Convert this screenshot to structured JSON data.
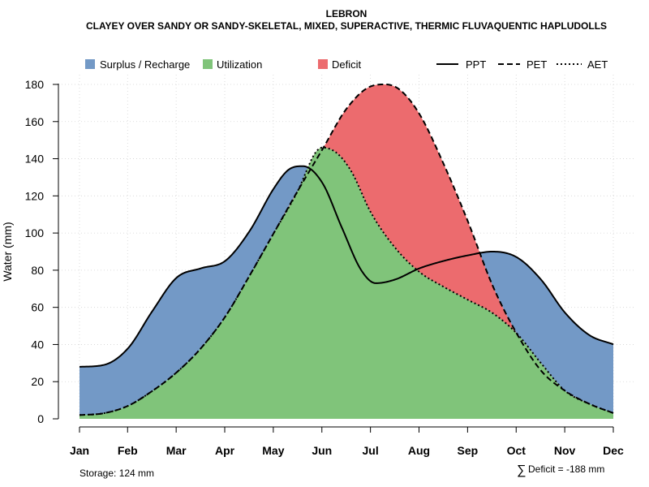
{
  "chart_data": {
    "type": "area",
    "title": "LEBRON",
    "subtitle": "CLAYEY OVER SANDY OR SANDY-SKELETAL, MIXED, SUPERACTIVE, THERMIC FLUVAQUENTIC HAPLUDOLLS",
    "xlabel": "",
    "ylabel": "Water (mm)",
    "ylim": [
      0,
      185
    ],
    "yticks": [
      0,
      20,
      40,
      60,
      80,
      100,
      120,
      140,
      160,
      180
    ],
    "grid": true,
    "legend_position": "top",
    "categories": [
      "Jan",
      "Feb",
      "Mar",
      "Apr",
      "May",
      "Jun",
      "Jul",
      "Aug",
      "Sep",
      "Oct",
      "Nov",
      "Dec"
    ],
    "x": [
      1,
      1.99,
      2.99,
      3.99,
      4.99,
      5.99,
      6.99,
      7.99,
      8.99,
      9.99,
      10.99,
      11.99
    ],
    "series": [
      {
        "name": "PPT",
        "line_style": "solid",
        "x": [
          1,
          1.5,
          2,
          2.5,
          3,
          3.5,
          4,
          4.5,
          5,
          5.3,
          5.6,
          6.0,
          6.4,
          6.8,
          7.1,
          7.5,
          8,
          8.5,
          9,
          9.5,
          10,
          10.5,
          11,
          11.5,
          12
        ],
        "values": [
          28,
          29,
          38,
          58,
          76,
          81,
          85,
          101,
          124,
          134,
          136,
          127,
          103,
          80,
          73,
          75,
          81,
          85,
          88,
          90,
          87,
          75,
          57,
          45,
          40
        ]
      },
      {
        "name": "PET",
        "line_style": "dashed",
        "x": [
          1,
          1.5,
          2,
          2.5,
          3,
          3.5,
          4,
          4.5,
          5,
          5.5,
          6.0,
          6.5,
          7,
          7.3,
          7.6,
          8,
          8.5,
          9,
          9.5,
          10,
          10.5,
          11,
          11.5,
          12
        ],
        "values": [
          2,
          3,
          7,
          15,
          25,
          38,
          55,
          77,
          100,
          123,
          145,
          167,
          179,
          180,
          177,
          164,
          137,
          106,
          72,
          46,
          26,
          15,
          8,
          3
        ]
      },
      {
        "name": "AET",
        "line_style": "dotted",
        "x": [
          1,
          1.5,
          2,
          2.5,
          3,
          3.5,
          4,
          4.5,
          5,
          5.5,
          5.85,
          6.0,
          6.3,
          6.6,
          7,
          7.5,
          8,
          8.5,
          9,
          9.5,
          10,
          10.5,
          11,
          11.5,
          12
        ],
        "values": [
          2,
          3,
          7,
          15,
          25,
          38,
          55,
          77,
          100,
          123,
          143,
          146,
          143,
          133,
          111,
          92,
          79,
          71,
          64,
          57,
          46,
          30,
          15,
          8,
          3
        ]
      }
    ],
    "legend": [
      {
        "label": "Surplus / Recharge",
        "kind": "fill",
        "color": "#7399C6"
      },
      {
        "label": "Utilization",
        "kind": "fill",
        "color": "#80C47A"
      },
      {
        "label": "Deficit",
        "kind": "fill",
        "color": "#EC6B6E"
      },
      {
        "label": "PPT",
        "kind": "line",
        "style": "solid"
      },
      {
        "label": "PET",
        "kind": "line",
        "style": "dashed"
      },
      {
        "label": "AET",
        "kind": "line",
        "style": "dotted"
      }
    ],
    "colors": {
      "surplus": "#7399C6",
      "utilization": "#80C47A",
      "deficit": "#EC6B6E",
      "grid": "#d3d3d3",
      "line": "#000000"
    },
    "annotations": {
      "storage": "Storage: 124 mm",
      "deficit_symbol": "∑",
      "deficit": "Deficit = -188 mm"
    }
  }
}
